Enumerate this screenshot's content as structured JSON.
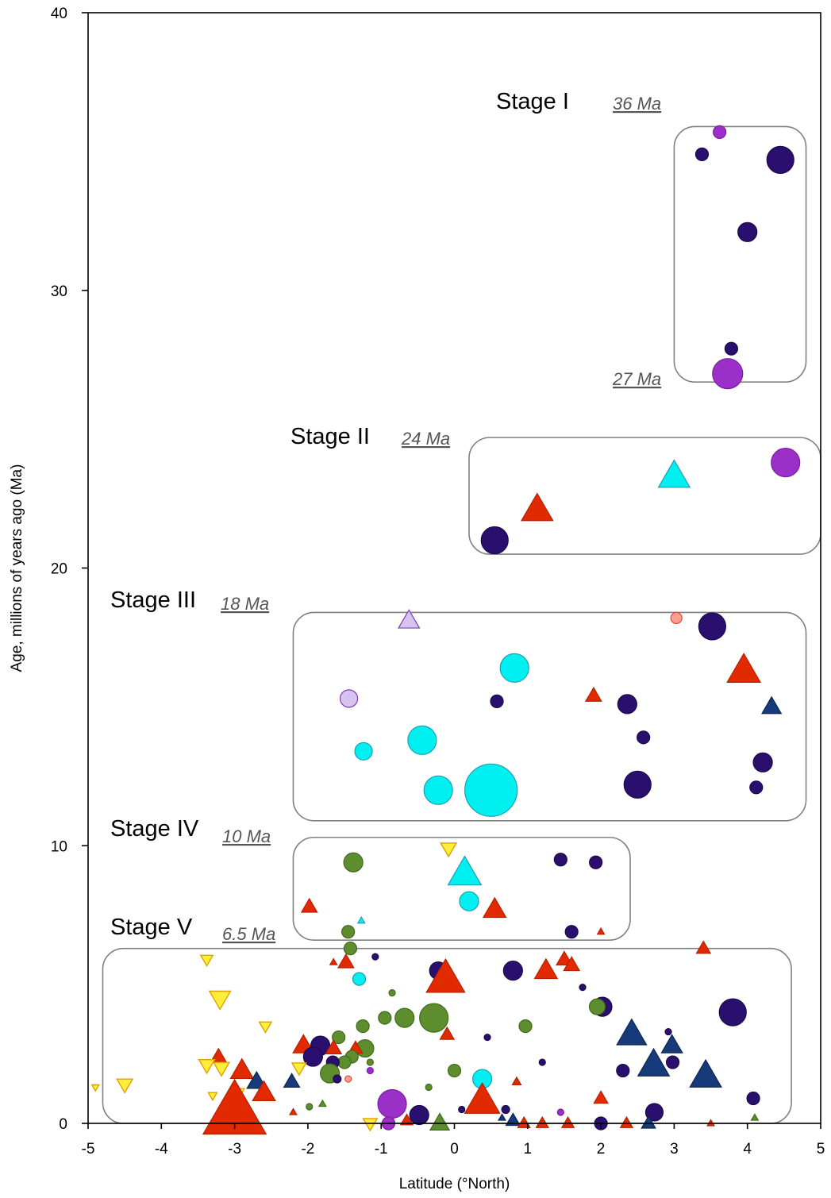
{
  "chart_data": {
    "type": "scatter",
    "title": "",
    "xlabel": "Latitude (°North)",
    "ylabel": "Age, millions of years ago (Ma)",
    "xlim": [
      -5,
      5
    ],
    "ylim": [
      0,
      40
    ],
    "x_ticks": [
      -5,
      -4,
      -3,
      -2,
      -1,
      0,
      1,
      2,
      3,
      4,
      5
    ],
    "y_ticks": [
      0,
      10,
      20,
      30,
      40
    ],
    "grid": false,
    "legend": "none",
    "colors": {
      "navy": "#2a0f6e",
      "blue": "#163a7a",
      "red": "#e22a00",
      "cyan": "#00f0f2",
      "purple": "#9b30c8",
      "lavender": "#d7c3f0",
      "green": "#5e8d2e",
      "yellow": "#ffee3a",
      "pink": "#ff9e90"
    },
    "stages": [
      {
        "label": "Stage I",
        "start_label": "36 Ma",
        "end_label": "27 Ma",
        "lat_range": [
          3,
          4.8
        ],
        "age_range": [
          26.7,
          35.9
        ]
      },
      {
        "label": "Stage II",
        "start_label": "24 Ma",
        "lat_range": [
          0.2,
          5
        ],
        "age_range": [
          20.5,
          24.7
        ]
      },
      {
        "label": "Stage III",
        "start_label": "18 Ma",
        "lat_range": [
          -2.2,
          4.8
        ],
        "age_range": [
          10.9,
          18.4
        ]
      },
      {
        "label": "Stage IV",
        "start_label": "10 Ma",
        "lat_range": [
          -2.2,
          2.4
        ],
        "age_range": [
          6.6,
          10.3
        ]
      },
      {
        "label": "Stage V",
        "start_label": "6.5 Ma",
        "lat_range": [
          -4.8,
          4.6
        ],
        "age_range": [
          0,
          6.3
        ]
      }
    ],
    "points": [
      {
        "x": 3.62,
        "y": 35.7,
        "shape": "circle",
        "color": "purple",
        "size": 8
      },
      {
        "x": 3.38,
        "y": 34.9,
        "shape": "circle",
        "color": "navy",
        "size": 8
      },
      {
        "x": 4.45,
        "y": 34.7,
        "shape": "circle",
        "color": "navy",
        "size": 17
      },
      {
        "x": 4.0,
        "y": 32.1,
        "shape": "circle",
        "color": "navy",
        "size": 12
      },
      {
        "x": 3.78,
        "y": 27.9,
        "shape": "circle",
        "color": "navy",
        "size": 8
      },
      {
        "x": 3.73,
        "y": 27.0,
        "shape": "circle",
        "color": "purple",
        "size": 19
      },
      {
        "x": 4.52,
        "y": 23.8,
        "shape": "circle",
        "color": "purple",
        "size": 18
      },
      {
        "x": 3.0,
        "y": 23.3,
        "shape": "triangle",
        "color": "cyan",
        "size": 18
      },
      {
        "x": 1.13,
        "y": 22.1,
        "shape": "triangle",
        "color": "red",
        "size": 18
      },
      {
        "x": 0.55,
        "y": 21.0,
        "shape": "circle",
        "color": "navy",
        "size": 17
      },
      {
        "x": -0.62,
        "y": 18.1,
        "shape": "triangle",
        "color": "lavender",
        "size": 12
      },
      {
        "x": 3.03,
        "y": 18.2,
        "shape": "circle",
        "color": "pink",
        "size": 7
      },
      {
        "x": 3.52,
        "y": 17.9,
        "shape": "circle",
        "color": "navy",
        "size": 17
      },
      {
        "x": 0.82,
        "y": 16.4,
        "shape": "circle",
        "color": "cyan",
        "size": 18
      },
      {
        "x": 3.95,
        "y": 16.3,
        "shape": "triangle",
        "color": "red",
        "size": 19
      },
      {
        "x": 1.9,
        "y": 15.4,
        "shape": "triangle",
        "color": "red",
        "size": 9
      },
      {
        "x": -1.44,
        "y": 15.3,
        "shape": "circle",
        "color": "lavender",
        "size": 11
      },
      {
        "x": 0.58,
        "y": 15.2,
        "shape": "circle",
        "color": "navy",
        "size": 8
      },
      {
        "x": 2.36,
        "y": 15.1,
        "shape": "circle",
        "color": "navy",
        "size": 12
      },
      {
        "x": 4.33,
        "y": 15.0,
        "shape": "triangle",
        "color": "blue",
        "size": 11
      },
      {
        "x": 2.58,
        "y": 13.9,
        "shape": "circle",
        "color": "navy",
        "size": 8
      },
      {
        "x": -0.44,
        "y": 13.8,
        "shape": "circle",
        "color": "cyan",
        "size": 18
      },
      {
        "x": -1.24,
        "y": 13.4,
        "shape": "circle",
        "color": "cyan",
        "size": 11
      },
      {
        "x": 4.21,
        "y": 13.0,
        "shape": "circle",
        "color": "navy",
        "size": 12
      },
      {
        "x": 2.5,
        "y": 12.2,
        "shape": "circle",
        "color": "navy",
        "size": 17
      },
      {
        "x": -0.22,
        "y": 12.0,
        "shape": "circle",
        "color": "cyan",
        "size": 18
      },
      {
        "x": 0.5,
        "y": 12.0,
        "shape": "circle",
        "color": "cyan",
        "size": 33
      },
      {
        "x": 4.12,
        "y": 12.1,
        "shape": "circle",
        "color": "navy",
        "size": 8
      },
      {
        "x": -0.08,
        "y": 9.9,
        "shape": "triangle_down",
        "color": "yellow",
        "size": 9
      },
      {
        "x": 1.45,
        "y": 9.5,
        "shape": "circle",
        "color": "navy",
        "size": 8
      },
      {
        "x": -1.38,
        "y": 9.4,
        "shape": "circle",
        "color": "green",
        "size": 12
      },
      {
        "x": 1.93,
        "y": 9.4,
        "shape": "circle",
        "color": "navy",
        "size": 8
      },
      {
        "x": 0.14,
        "y": 9.0,
        "shape": "triangle",
        "color": "cyan",
        "size": 19
      },
      {
        "x": 0.2,
        "y": 8.0,
        "shape": "circle",
        "color": "cyan",
        "size": 12
      },
      {
        "x": -1.98,
        "y": 7.8,
        "shape": "triangle",
        "color": "red",
        "size": 9
      },
      {
        "x": 0.55,
        "y": 7.7,
        "shape": "triangle",
        "color": "red",
        "size": 13
      },
      {
        "x": -1.27,
        "y": 7.3,
        "shape": "triangle",
        "color": "cyan",
        "size": 4
      },
      {
        "x": -1.45,
        "y": 6.9,
        "shape": "circle",
        "color": "green",
        "size": 8
      },
      {
        "x": 1.6,
        "y": 6.9,
        "shape": "circle",
        "color": "navy",
        "size": 8
      },
      {
        "x": 2.0,
        "y": 6.9,
        "shape": "triangle",
        "color": "red",
        "size": 4
      },
      {
        "x": 3.4,
        "y": 6.3,
        "shape": "triangle",
        "color": "red",
        "size": 8
      },
      {
        "x": -1.42,
        "y": 6.3,
        "shape": "circle",
        "color": "green",
        "size": 8
      },
      {
        "x": -3.38,
        "y": 5.9,
        "shape": "triangle_down",
        "color": "yellow",
        "size": 7
      },
      {
        "x": -1.48,
        "y": 5.8,
        "shape": "triangle",
        "color": "red",
        "size": 9
      },
      {
        "x": -1.65,
        "y": 5.8,
        "shape": "triangle",
        "color": "red",
        "size": 4
      },
      {
        "x": 1.5,
        "y": 5.9,
        "shape": "triangle",
        "color": "red",
        "size": 9
      },
      {
        "x": 1.6,
        "y": 5.7,
        "shape": "triangle",
        "color": "red",
        "size": 9
      },
      {
        "x": 1.25,
        "y": 5.5,
        "shape": "triangle",
        "color": "red",
        "size": 13
      },
      {
        "x": 0.8,
        "y": 5.5,
        "shape": "circle",
        "color": "navy",
        "size": 12
      },
      {
        "x": -0.22,
        "y": 5.5,
        "shape": "circle",
        "color": "navy",
        "size": 11
      },
      {
        "x": -0.12,
        "y": 5.2,
        "shape": "triangle",
        "color": "red",
        "size": 22
      },
      {
        "x": -1.3,
        "y": 5.2,
        "shape": "circle",
        "color": "cyan",
        "size": 8
      },
      {
        "x": -3.2,
        "y": 4.5,
        "shape": "triangle_down",
        "color": "yellow",
        "size": 12
      },
      {
        "x": 2.02,
        "y": 4.2,
        "shape": "circle",
        "color": "navy",
        "size": 12
      },
      {
        "x": 1.95,
        "y": 4.2,
        "shape": "circle",
        "color": "green",
        "size": 10
      },
      {
        "x": 3.8,
        "y": 4.0,
        "shape": "circle",
        "color": "navy",
        "size": 17
      },
      {
        "x": -0.28,
        "y": 3.8,
        "shape": "circle",
        "color": "green",
        "size": 18
      },
      {
        "x": -0.68,
        "y": 3.8,
        "shape": "circle",
        "color": "green",
        "size": 12
      },
      {
        "x": -0.95,
        "y": 3.8,
        "shape": "circle",
        "color": "green",
        "size": 8
      },
      {
        "x": -2.58,
        "y": 3.5,
        "shape": "triangle_down",
        "color": "yellow",
        "size": 7
      },
      {
        "x": -1.25,
        "y": 3.5,
        "shape": "circle",
        "color": "green",
        "size": 8
      },
      {
        "x": 0.97,
        "y": 3.5,
        "shape": "circle",
        "color": "green",
        "size": 8
      },
      {
        "x": 2.42,
        "y": 3.2,
        "shape": "triangle",
        "color": "blue",
        "size": 17
      },
      {
        "x": -0.1,
        "y": 3.2,
        "shape": "triangle",
        "color": "red",
        "size": 8
      },
      {
        "x": -1.58,
        "y": 3.1,
        "shape": "circle",
        "color": "green",
        "size": 8
      },
      {
        "x": 0.45,
        "y": 3.1,
        "shape": "circle",
        "color": "navy",
        "size": 4
      },
      {
        "x": 2.97,
        "y": 2.8,
        "shape": "triangle",
        "color": "blue",
        "size": 12
      },
      {
        "x": -2.06,
        "y": 2.8,
        "shape": "triangle",
        "color": "red",
        "size": 12
      },
      {
        "x": -1.83,
        "y": 2.8,
        "shape": "circle",
        "color": "navy",
        "size": 12
      },
      {
        "x": -1.22,
        "y": 2.7,
        "shape": "circle",
        "color": "green",
        "size": 11
      },
      {
        "x": -1.35,
        "y": 2.7,
        "shape": "triangle",
        "color": "red",
        "size": 8
      },
      {
        "x": -1.65,
        "y": 2.7,
        "shape": "triangle",
        "color": "red",
        "size": 9
      },
      {
        "x": -3.22,
        "y": 2.4,
        "shape": "triangle",
        "color": "red",
        "size": 9
      },
      {
        "x": -1.93,
        "y": 2.4,
        "shape": "circle",
        "color": "navy",
        "size": 12
      },
      {
        "x": -1.4,
        "y": 2.4,
        "shape": "circle",
        "color": "green",
        "size": 8
      },
      {
        "x": -1.5,
        "y": 2.2,
        "shape": "circle",
        "color": "green",
        "size": 8
      },
      {
        "x": -1.66,
        "y": 2.2,
        "shape": "circle",
        "color": "navy",
        "size": 8
      },
      {
        "x": 2.72,
        "y": 2.1,
        "shape": "triangle",
        "color": "blue",
        "size": 18
      },
      {
        "x": 2.98,
        "y": 2.2,
        "shape": "circle",
        "color": "navy",
        "size": 8
      },
      {
        "x": -3.38,
        "y": 2.1,
        "shape": "triangle_down",
        "color": "yellow",
        "size": 9
      },
      {
        "x": -3.18,
        "y": 2.0,
        "shape": "triangle_down",
        "color": "yellow",
        "size": 9
      },
      {
        "x": -2.9,
        "y": 1.9,
        "shape": "triangle",
        "color": "red",
        "size": 13
      },
      {
        "x": -2.12,
        "y": 2.0,
        "shape": "triangle_down",
        "color": "yellow",
        "size": 8
      },
      {
        "x": 0.0,
        "y": 1.9,
        "shape": "circle",
        "color": "green",
        "size": 8
      },
      {
        "x": 2.3,
        "y": 1.9,
        "shape": "circle",
        "color": "navy",
        "size": 8
      },
      {
        "x": -1.7,
        "y": 1.8,
        "shape": "circle",
        "color": "green",
        "size": 12
      },
      {
        "x": 3.43,
        "y": 1.7,
        "shape": "triangle",
        "color": "blue",
        "size": 18
      },
      {
        "x": 0.38,
        "y": 1.6,
        "shape": "circle",
        "color": "cyan",
        "size": 12
      },
      {
        "x": -2.7,
        "y": 1.5,
        "shape": "triangle",
        "color": "blue",
        "size": 11
      },
      {
        "x": -2.22,
        "y": 1.5,
        "shape": "triangle",
        "color": "blue",
        "size": 9
      },
      {
        "x": -4.5,
        "y": 1.4,
        "shape": "triangle_down",
        "color": "yellow",
        "size": 9
      },
      {
        "x": -2.6,
        "y": 1.1,
        "shape": "triangle",
        "color": "red",
        "size": 13
      },
      {
        "x": -2.95,
        "y": 1.1,
        "shape": "triangle_down",
        "color": "yellow",
        "size": 7
      },
      {
        "x": -3.3,
        "y": 1.0,
        "shape": "triangle_down",
        "color": "yellow",
        "size": 5
      },
      {
        "x": 2.0,
        "y": 0.9,
        "shape": "triangle",
        "color": "red",
        "size": 8
      },
      {
        "x": 4.08,
        "y": 0.9,
        "shape": "circle",
        "color": "navy",
        "size": 8
      },
      {
        "x": -0.85,
        "y": 0.7,
        "shape": "circle",
        "color": "purple",
        "size": 18
      },
      {
        "x": 0.38,
        "y": 0.8,
        "shape": "triangle",
        "color": "red",
        "size": 20
      },
      {
        "x": -0.48,
        "y": 0.3,
        "shape": "circle",
        "color": "navy",
        "size": 12
      },
      {
        "x": 2.73,
        "y": 0.4,
        "shape": "circle",
        "color": "navy",
        "size": 11
      },
      {
        "x": -3.0,
        "y": 0.4,
        "shape": "triangle",
        "color": "red",
        "size": 36
      },
      {
        "x": -1.15,
        "y": 0.0,
        "shape": "triangle_down",
        "color": "yellow",
        "size": 8
      },
      {
        "x": -0.9,
        "y": 0.0,
        "shape": "circle",
        "color": "green",
        "size": 8
      },
      {
        "x": -0.9,
        "y": 0.0,
        "shape": "circle",
        "color": "purple",
        "size": 8
      },
      {
        "x": -0.2,
        "y": 0.0,
        "shape": "triangle",
        "color": "green",
        "size": 11
      },
      {
        "x": 0.8,
        "y": 0.1,
        "shape": "triangle",
        "color": "blue",
        "size": 8
      },
      {
        "x": 0.95,
        "y": 0.0,
        "shape": "triangle",
        "color": "red",
        "size": 7
      },
      {
        "x": 1.2,
        "y": 0.0,
        "shape": "triangle",
        "color": "red",
        "size": 7
      },
      {
        "x": 1.55,
        "y": 0.0,
        "shape": "triangle",
        "color": "red",
        "size": 7
      },
      {
        "x": 2.0,
        "y": 0.0,
        "shape": "circle",
        "color": "navy",
        "size": 8
      },
      {
        "x": 2.35,
        "y": 0.0,
        "shape": "triangle",
        "color": "red",
        "size": 7
      },
      {
        "x": 2.65,
        "y": 0.0,
        "shape": "triangle",
        "color": "blue",
        "size": 8
      },
      {
        "x": -0.65,
        "y": 0.1,
        "shape": "triangle",
        "color": "red",
        "size": 7
      },
      {
        "x": -2.2,
        "y": 0.4,
        "shape": "triangle",
        "color": "red",
        "size": 4
      },
      {
        "x": -1.45,
        "y": 1.6,
        "shape": "circle",
        "color": "pink",
        "size": 4
      },
      {
        "x": -1.6,
        "y": 1.6,
        "shape": "circle",
        "color": "navy",
        "size": 5
      },
      {
        "x": -4.9,
        "y": 1.3,
        "shape": "triangle_down",
        "color": "yellow",
        "size": 4
      },
      {
        "x": 0.7,
        "y": 0.5,
        "shape": "circle",
        "color": "navy",
        "size": 5
      },
      {
        "x": 1.45,
        "y": 0.4,
        "shape": "circle",
        "color": "purple",
        "size": 4
      },
      {
        "x": 4.1,
        "y": 0.2,
        "shape": "triangle",
        "color": "green",
        "size": 4
      },
      {
        "x": -1.08,
        "y": 6.0,
        "shape": "circle",
        "color": "navy",
        "size": 4
      },
      {
        "x": -0.85,
        "y": 4.7,
        "shape": "circle",
        "color": "green",
        "size": 4
      },
      {
        "x": 1.75,
        "y": 4.9,
        "shape": "circle",
        "color": "navy",
        "size": 4
      },
      {
        "x": 2.92,
        "y": 3.3,
        "shape": "circle",
        "color": "navy",
        "size": 4
      },
      {
        "x": 1.2,
        "y": 2.2,
        "shape": "circle",
        "color": "navy",
        "size": 4
      },
      {
        "x": -1.15,
        "y": 1.9,
        "shape": "circle",
        "color": "purple",
        "size": 4
      },
      {
        "x": -1.15,
        "y": 2.2,
        "shape": "circle",
        "color": "green",
        "size": 4
      },
      {
        "x": 0.85,
        "y": 1.5,
        "shape": "triangle",
        "color": "red",
        "size": 5
      },
      {
        "x": -0.35,
        "y": 1.3,
        "shape": "circle",
        "color": "green",
        "size": 4
      },
      {
        "x": -1.98,
        "y": 0.6,
        "shape": "circle",
        "color": "green",
        "size": 4
      },
      {
        "x": -1.8,
        "y": 0.7,
        "shape": "triangle",
        "color": "green",
        "size": 4
      },
      {
        "x": 0.1,
        "y": 0.5,
        "shape": "circle",
        "color": "navy",
        "size": 4
      },
      {
        "x": 0.65,
        "y": 0.2,
        "shape": "triangle",
        "color": "blue",
        "size": 4
      },
      {
        "x": 3.5,
        "y": 0.0,
        "shape": "triangle",
        "color": "red",
        "size": 4
      }
    ]
  }
}
